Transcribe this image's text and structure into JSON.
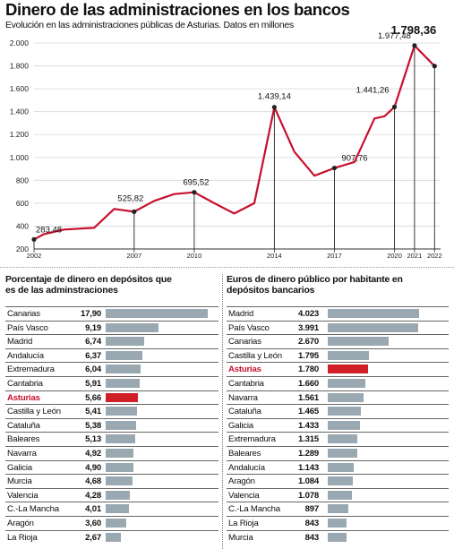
{
  "header": {
    "title": "Dinero de las administraciones en los bancos",
    "subtitle": "Evolución en las administraciones públicas de Asturias. Datos en millones"
  },
  "colors": {
    "line": "#c8102e",
    "bar": "#9aa9b1",
    "highlight": "#d11f28"
  },
  "chart_data": [
    {
      "type": "line",
      "title": "Dinero de las administraciones en los bancos",
      "subtitle": "Evolución en las administraciones públicas de Asturias. Datos en millones",
      "ylim": [
        200,
        2000
      ],
      "y_ticks": [
        "200",
        "400",
        "600",
        "800",
        "1.000",
        "1.200",
        "1.400",
        "1.600",
        "1.800",
        "2.000"
      ],
      "x_ticks": [
        "2002",
        "2007",
        "2010",
        "2014",
        "2017",
        "2020",
        "2021",
        "2022"
      ],
      "x_tick_pos": [
        2002,
        2007,
        2010,
        2014,
        2017,
        2020,
        2021,
        2022
      ],
      "grid": true,
      "series": [
        {
          "x": [
            2002,
            2002.5,
            2003.5,
            2004.5,
            2005,
            2006,
            2007,
            2008,
            2009,
            2010,
            2011,
            2012,
            2013,
            2014,
            2015,
            2016,
            2017,
            2018,
            2019,
            2019.5,
            2020,
            2021,
            2022
          ],
          "values": [
            283.48,
            330,
            370,
            380,
            385,
            550,
            525.82,
            620,
            680,
            695.52,
            600,
            510,
            600,
            1439.14,
            1050,
            840,
            907.76,
            960,
            1340,
            1360,
            1441.26,
            1977.48,
            1798.36
          ]
        }
      ],
      "labels": [
        {
          "x": 2002,
          "text": "283,48"
        },
        {
          "x": 2007,
          "text": "525,82"
        },
        {
          "x": 2010,
          "text": "695,52"
        },
        {
          "x": 2014,
          "text": "1.439,14"
        },
        {
          "x": 2017,
          "text": "907,76"
        },
        {
          "x": 2020,
          "text": "1.441,26"
        },
        {
          "x": 2021,
          "text": "1.977,48"
        },
        {
          "x": 2022,
          "text": "1.798,36"
        }
      ]
    },
    {
      "type": "bar",
      "title": "Porcentaje de dinero en depósitos que es de las adminstraciones",
      "xlim": [
        0,
        17.9
      ],
      "highlight": "Asturias",
      "categories": [
        "Canarias",
        "País Vasco",
        "Madrid",
        "Andalucía",
        "Extremadura",
        "Cantabria",
        "Asturias",
        "Castilla y León",
        "Cataluña",
        "Baleares",
        "Navarra",
        "Galicia",
        "Murcia",
        "Valencia",
        "C.-La Mancha",
        "Aragón",
        "La Rioja"
      ],
      "values": [
        17.9,
        9.19,
        6.74,
        6.37,
        6.04,
        5.91,
        5.66,
        5.41,
        5.38,
        5.13,
        4.92,
        4.9,
        4.68,
        4.28,
        4.01,
        3.6,
        2.67
      ],
      "value_labels": [
        "17,90",
        "9,19",
        "6,74",
        "6,37",
        "6,04",
        "5,91",
        "5,66",
        "5,41",
        "5,38",
        "5,13",
        "4,92",
        "4,90",
        "4,68",
        "4,28",
        "4,01",
        "3,60",
        "2,67"
      ]
    },
    {
      "type": "bar",
      "title": "Euros de dinero público por habitante en depósitos bancarios",
      "xlim": [
        0,
        4023
      ],
      "highlight": "Asturias",
      "categories": [
        "Madrid",
        "País Vasco",
        "Canarias",
        "Castilla y León",
        "Asturias",
        "Cantabria",
        "Navarra",
        "Cataluña",
        "Galicia",
        "Extremadura",
        "Baleares",
        "Andalucía",
        "Aragón",
        "Valencia",
        "C.-La Mancha",
        "La Rioja",
        "Murcia"
      ],
      "values": [
        4023,
        3991,
        2670,
        1795,
        1780,
        1660,
        1561,
        1465,
        1433,
        1315,
        1289,
        1143,
        1084,
        1078,
        897,
        843,
        843
      ],
      "value_labels": [
        "4.023",
        "3.991",
        "2.670",
        "1.795",
        "1.780",
        "1.660",
        "1.561",
        "1.465",
        "1.433",
        "1.315",
        "1.289",
        "1.143",
        "1.084",
        "1.078",
        "897",
        "843",
        "843"
      ]
    }
  ]
}
